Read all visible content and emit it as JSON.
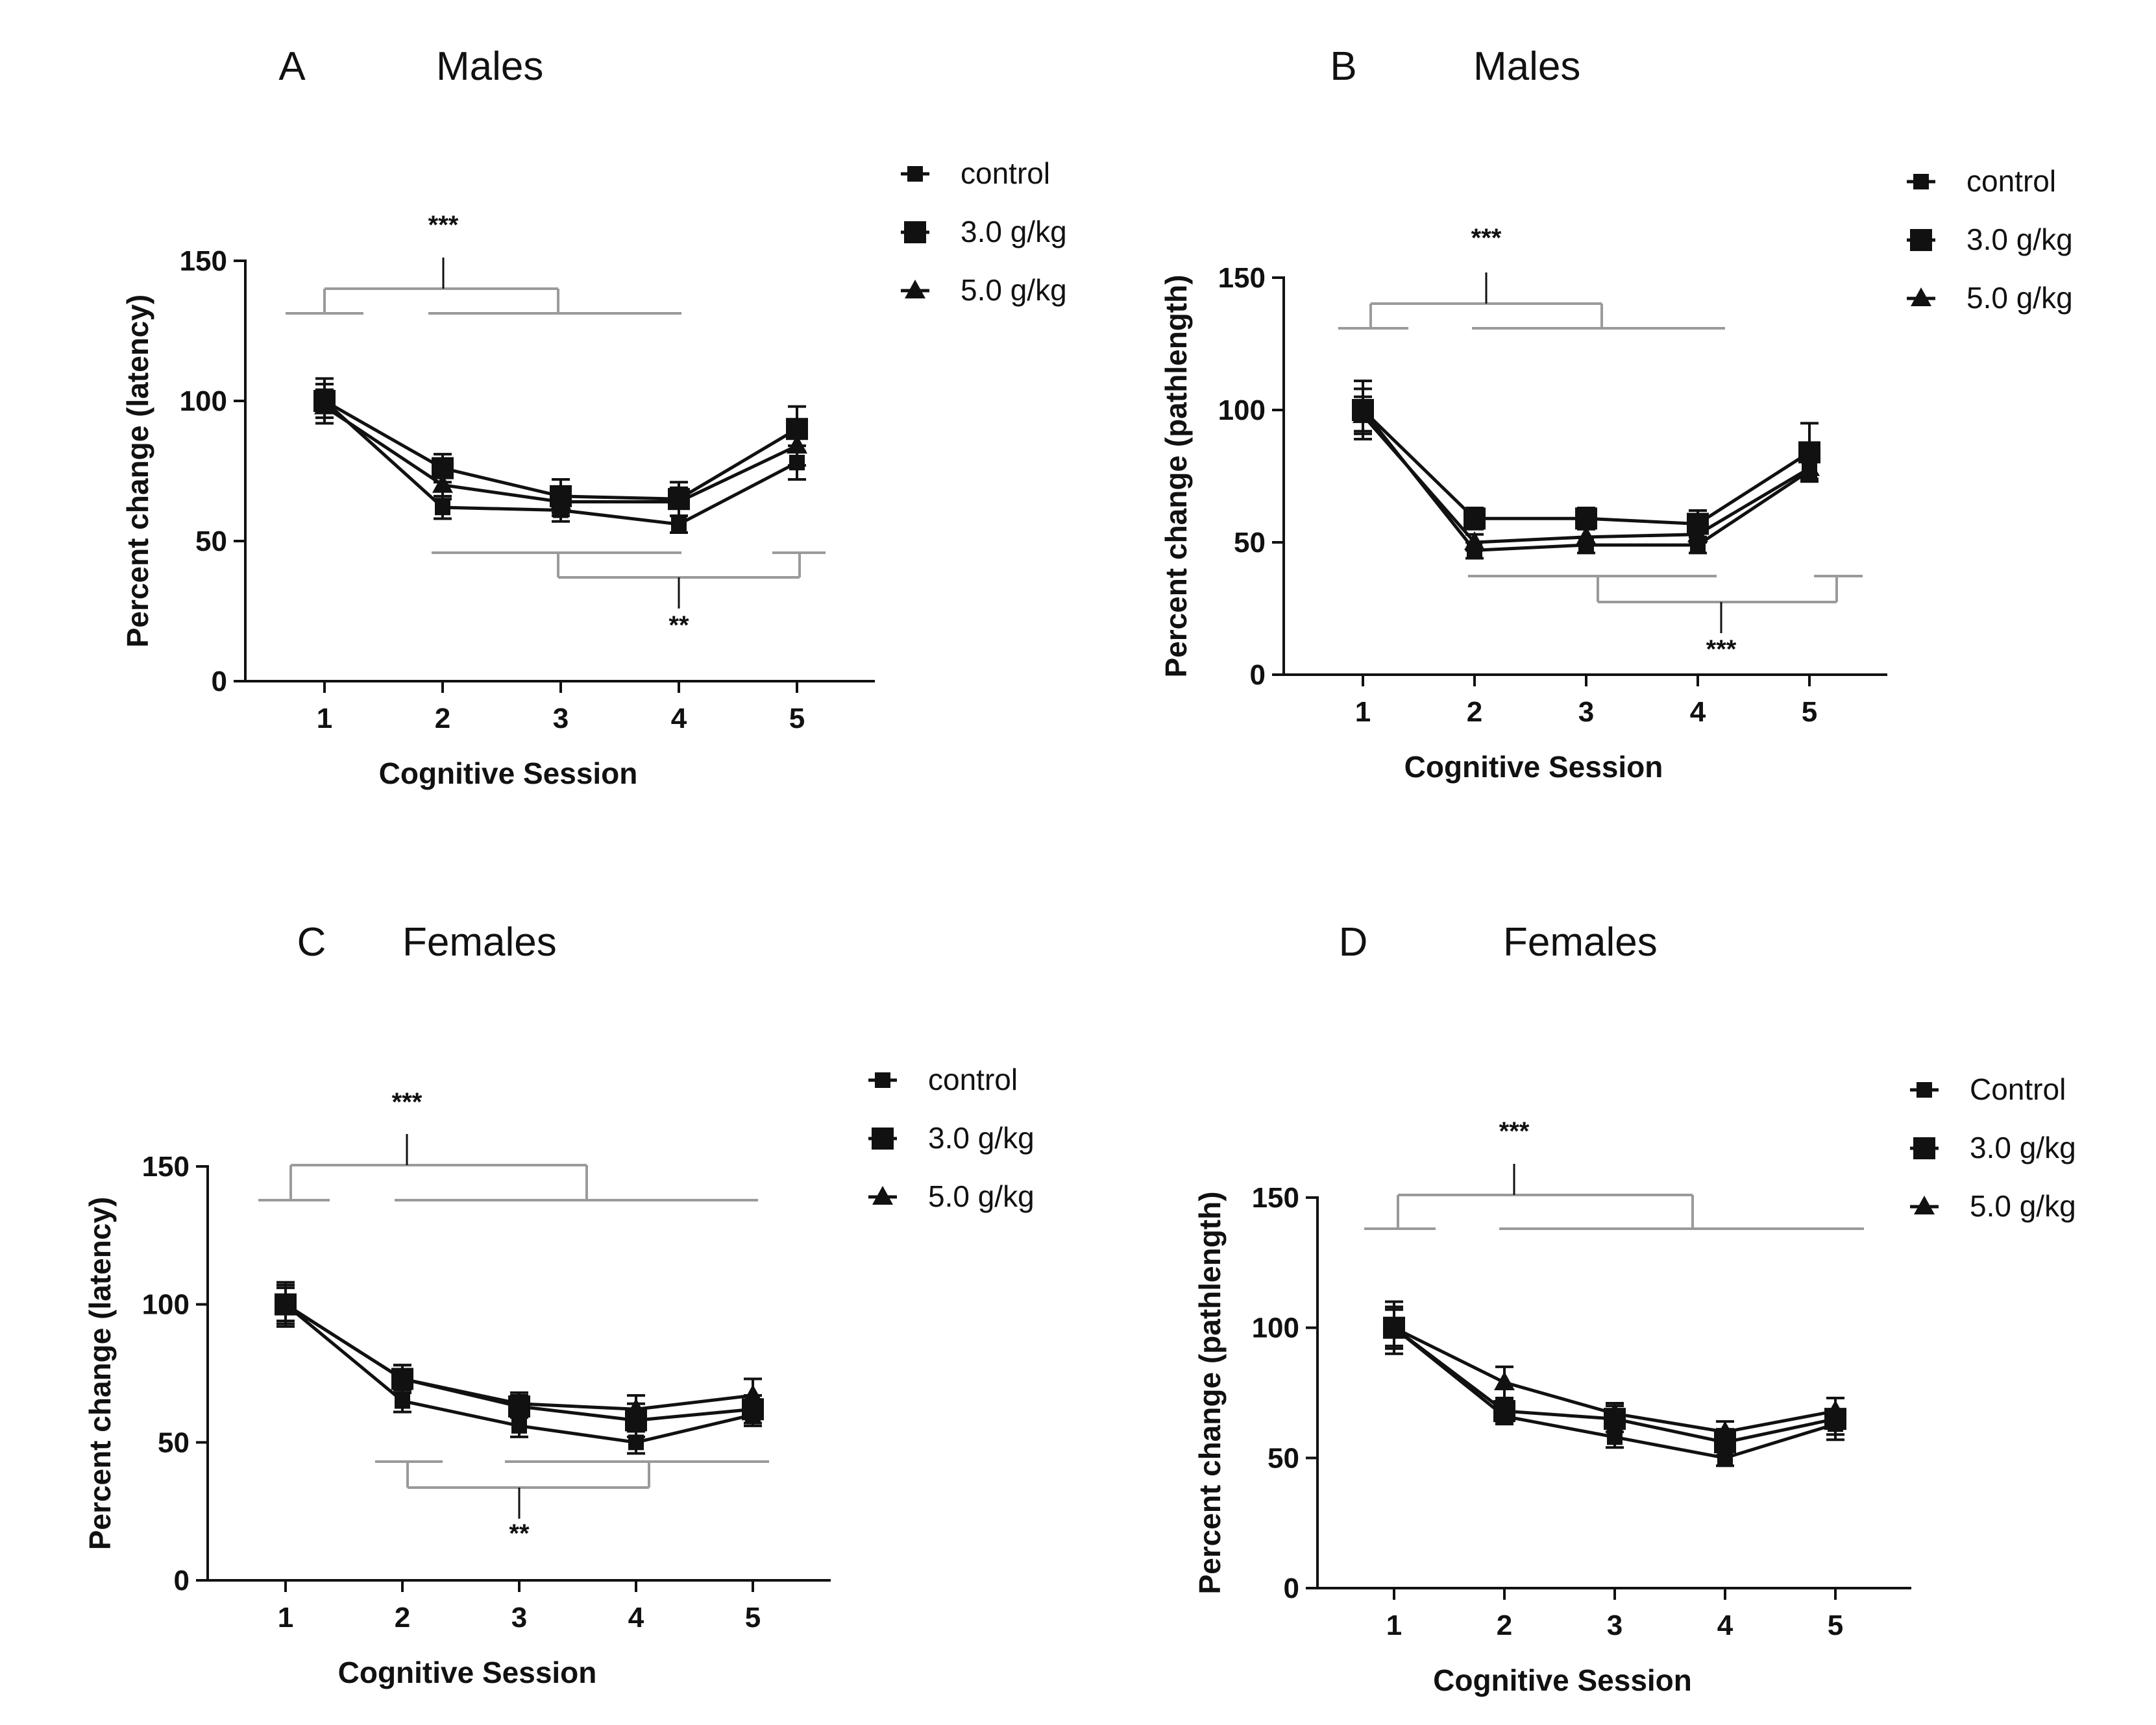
{
  "colors": {
    "ink": "#111111",
    "bracket": "#9a9a9a",
    "background": "#ffffff"
  },
  "chart_data": [
    {
      "type": "line",
      "panel": "A",
      "title": "Males",
      "xlabel": "Cognitive Session",
      "ylabel": "Percent change (latency)",
      "x": [
        1,
        2,
        3,
        4,
        5
      ],
      "x_ticks": [
        "1",
        "2",
        "3",
        "4",
        "5"
      ],
      "ylim": [
        0,
        150
      ],
      "y_ticks": [
        "0",
        "50",
        "100",
        "150"
      ],
      "series": [
        {
          "name": "control",
          "marker": "square-small",
          "values": [
            100,
            62,
            61,
            56,
            78
          ],
          "errors": [
            6,
            4,
            4,
            3,
            6
          ]
        },
        {
          "name": "3.0 g/kg",
          "marker": "square",
          "values": [
            100,
            76,
            66,
            65,
            90
          ],
          "errors": [
            8,
            5,
            6,
            6,
            8
          ]
        },
        {
          "name": "5.0 g/kg",
          "marker": "triangle",
          "values": [
            98,
            70,
            64,
            64,
            84
          ],
          "errors": [
            6,
            5,
            5,
            5,
            7
          ]
        }
      ],
      "annotations": [
        {
          "label": "***",
          "position": "top",
          "bracket": "session 1 vs sessions 2–4"
        },
        {
          "label": "**",
          "position": "bottom",
          "bracket": "sessions 2–4 vs session 5"
        }
      ],
      "legend": {
        "position": "right-outside",
        "entries": [
          "control",
          "3.0 g/kg",
          "5.0 g/kg"
        ]
      }
    },
    {
      "type": "line",
      "panel": "B",
      "title": "Males",
      "xlabel": "Cognitive Session",
      "ylabel": "Percent change (pathlength)",
      "x": [
        1,
        2,
        3,
        4,
        5
      ],
      "x_ticks": [
        "1",
        "2",
        "3",
        "4",
        "5"
      ],
      "ylim": [
        0,
        150
      ],
      "y_ticks": [
        "0",
        "50",
        "100",
        "150"
      ],
      "series": [
        {
          "name": "control",
          "marker": "square-small",
          "values": [
            100,
            47,
            49,
            49,
            77
          ],
          "errors": [
            8,
            3,
            3,
            3,
            4
          ]
        },
        {
          "name": "3.0 g/kg",
          "marker": "square",
          "values": [
            100,
            59,
            59,
            57,
            84
          ],
          "errors": [
            11,
            4,
            4,
            5,
            11
          ]
        },
        {
          "name": "5.0 g/kg",
          "marker": "triangle",
          "values": [
            98,
            50,
            52,
            53,
            78
          ],
          "errors": [
            7,
            3,
            3,
            3,
            4
          ]
        }
      ],
      "annotations": [
        {
          "label": "***",
          "position": "top",
          "bracket": "session 1 vs sessions 2–4"
        },
        {
          "label": "***",
          "position": "bottom",
          "bracket": "sessions 2–4 vs session 5"
        }
      ],
      "legend": {
        "position": "right-outside",
        "entries": [
          "control",
          "3.0 g/kg",
          "5.0 g/kg"
        ]
      }
    },
    {
      "type": "line",
      "panel": "C",
      "title": "Females",
      "xlabel": "Cognitive Session",
      "ylabel": "Percent change (latency)",
      "x": [
        1,
        2,
        3,
        4,
        5
      ],
      "x_ticks": [
        "1",
        "2",
        "3",
        "4",
        "5"
      ],
      "ylim": [
        0,
        150
      ],
      "y_ticks": [
        "0",
        "50",
        "100",
        "150"
      ],
      "series": [
        {
          "name": "control",
          "marker": "square-small",
          "values": [
            100,
            65,
            56,
            50,
            60
          ],
          "errors": [
            7,
            4,
            4,
            4,
            4
          ]
        },
        {
          "name": "3.0 g/kg",
          "marker": "square",
          "values": [
            100,
            73,
            63,
            58,
            62
          ],
          "errors": [
            8,
            5,
            4,
            6,
            5
          ]
        },
        {
          "name": "5.0 g/kg",
          "marker": "triangle",
          "values": [
            100,
            73,
            64,
            62,
            67
          ],
          "errors": [
            6,
            5,
            4,
            5,
            6
          ]
        }
      ],
      "annotations": [
        {
          "label": "***",
          "position": "top",
          "bracket": "session 1 vs sessions 2–5"
        },
        {
          "label": "**",
          "position": "bottom",
          "bracket": "session 2 vs sessions 3–5"
        }
      ],
      "legend": {
        "position": "right-outside",
        "entries": [
          "control",
          "3.0 g/kg",
          "5.0 g/kg"
        ]
      }
    },
    {
      "type": "line",
      "panel": "D",
      "title": "Females",
      "xlabel": "Cognitive Session",
      "ylabel": "Percent change (pathlength)",
      "x": [
        1,
        2,
        3,
        4,
        5
      ],
      "x_ticks": [
        "1",
        "2",
        "3",
        "4",
        "5"
      ],
      "ylim": [
        0,
        150
      ],
      "y_ticks": [
        "0",
        "50",
        "100",
        "150"
      ],
      "series": [
        {
          "name": "Control",
          "marker": "square-small",
          "values": [
            100,
            66,
            58,
            50,
            63
          ],
          "errors": [
            10,
            3,
            4,
            3,
            4
          ]
        },
        {
          "name": "3.0 g/kg",
          "marker": "square",
          "values": [
            100,
            68,
            65,
            56,
            65
          ],
          "errors": [
            8,
            4,
            5,
            5,
            8
          ]
        },
        {
          "name": "5.0 g/kg",
          "marker": "triangle",
          "values": [
            100,
            79,
            67,
            60,
            68
          ],
          "errors": [
            7,
            6,
            4,
            4,
            5
          ]
        }
      ],
      "annotations": [
        {
          "label": "***",
          "position": "top",
          "bracket": "session 1 vs sessions 2–5"
        }
      ],
      "legend": {
        "position": "right-outside",
        "entries": [
          "Control",
          "3.0 g/kg",
          "5.0 g/kg"
        ]
      }
    }
  ]
}
